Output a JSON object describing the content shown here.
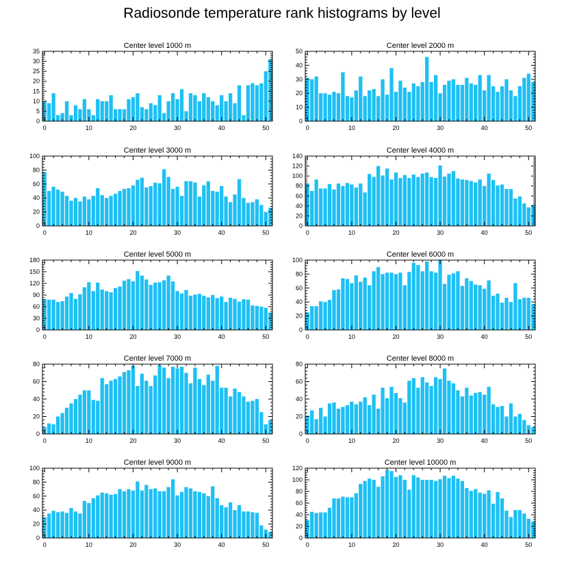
{
  "title": "Radiosonde temperature rank histograms by level",
  "colors": {
    "bar": "#1ec0f4",
    "axis": "#000000"
  },
  "chart_data": [
    {
      "type": "bar",
      "title": "Center level 1000 m",
      "x": [
        0,
        1,
        2,
        3,
        4,
        5,
        6,
        7,
        8,
        9,
        10,
        11,
        12,
        13,
        14,
        15,
        16,
        17,
        18,
        19,
        20,
        21,
        22,
        23,
        24,
        25,
        26,
        27,
        28,
        29,
        30,
        31,
        32,
        33,
        34,
        35,
        36,
        37,
        38,
        39,
        40,
        41,
        42,
        43,
        44,
        45,
        46,
        47,
        48,
        49,
        50,
        51
      ],
      "values": [
        10,
        9,
        14,
        3,
        4,
        10,
        3,
        8,
        6,
        11,
        6,
        3,
        11,
        10,
        10,
        13,
        6,
        6,
        6,
        11,
        12,
        14,
        7,
        6,
        9,
        8,
        13,
        4,
        10,
        14,
        11,
        16,
        5,
        14,
        13,
        10,
        14,
        12,
        10,
        8,
        13,
        10,
        14,
        9,
        18,
        3,
        18,
        19,
        18,
        19,
        25,
        31
      ],
      "xlim": [
        -0.5,
        51.5
      ],
      "ylim": [
        0,
        35
      ],
      "xticks": [
        0,
        10,
        20,
        30,
        40,
        50
      ],
      "yticks": [
        0,
        5,
        10,
        15,
        20,
        25,
        30,
        35
      ]
    },
    {
      "type": "bar",
      "title": "Center level 2000 m",
      "x": [
        0,
        1,
        2,
        3,
        4,
        5,
        6,
        7,
        8,
        9,
        10,
        11,
        12,
        13,
        14,
        15,
        16,
        17,
        18,
        19,
        20,
        21,
        22,
        23,
        24,
        25,
        26,
        27,
        28,
        29,
        30,
        31,
        32,
        33,
        34,
        35,
        36,
        37,
        38,
        39,
        40,
        41,
        42,
        43,
        44,
        45,
        46,
        47,
        48,
        49,
        50,
        51
      ],
      "values": [
        31,
        30,
        32,
        20,
        20,
        19,
        21,
        20,
        35,
        18,
        17,
        22,
        32,
        18,
        22,
        23,
        18,
        30,
        19,
        38,
        21,
        29,
        24,
        21,
        27,
        25,
        28,
        46,
        28,
        33,
        20,
        26,
        29,
        30,
        26,
        26,
        31,
        27,
        26,
        33,
        22,
        33,
        25,
        21,
        25,
        30,
        22,
        18,
        25,
        31,
        34,
        28
      ],
      "xlim": [
        -0.5,
        51.5
      ],
      "ylim": [
        0,
        50
      ],
      "xticks": [
        0,
        10,
        20,
        30,
        40,
        50
      ],
      "yticks": [
        0,
        10,
        20,
        30,
        40,
        50
      ]
    },
    {
      "type": "bar",
      "title": "Center level 3000 m",
      "x": [
        0,
        1,
        2,
        3,
        4,
        5,
        6,
        7,
        8,
        9,
        10,
        11,
        12,
        13,
        14,
        15,
        16,
        17,
        18,
        19,
        20,
        21,
        22,
        23,
        24,
        25,
        26,
        27,
        28,
        29,
        30,
        31,
        32,
        33,
        34,
        35,
        36,
        37,
        38,
        39,
        40,
        41,
        42,
        43,
        44,
        45,
        46,
        47,
        48,
        49,
        50,
        51
      ],
      "values": [
        77,
        50,
        56,
        52,
        49,
        43,
        36,
        40,
        35,
        42,
        38,
        43,
        54,
        44,
        40,
        43,
        46,
        50,
        53,
        54,
        58,
        66,
        69,
        55,
        57,
        62,
        61,
        81,
        70,
        53,
        56,
        43,
        64,
        64,
        62,
        42,
        58,
        64,
        50,
        49,
        57,
        42,
        34,
        45,
        67,
        40,
        33,
        34,
        38,
        30,
        20,
        26
      ],
      "xlim": [
        -0.5,
        51.5
      ],
      "ylim": [
        0,
        100
      ],
      "xticks": [
        0,
        10,
        20,
        30,
        40,
        50
      ],
      "yticks": [
        0,
        20,
        40,
        60,
        80,
        100
      ]
    },
    {
      "type": "bar",
      "title": "Center level 4000 m",
      "x": [
        0,
        1,
        2,
        3,
        4,
        5,
        6,
        7,
        8,
        9,
        10,
        11,
        12,
        13,
        14,
        15,
        16,
        17,
        18,
        19,
        20,
        21,
        22,
        23,
        24,
        25,
        26,
        27,
        28,
        29,
        30,
        31,
        32,
        33,
        34,
        35,
        36,
        37,
        38,
        39,
        40,
        41,
        42,
        43,
        44,
        45,
        46,
        47,
        48,
        49,
        50,
        51
      ],
      "values": [
        85,
        70,
        93,
        75,
        75,
        84,
        73,
        85,
        80,
        86,
        83,
        77,
        85,
        67,
        104,
        98,
        120,
        101,
        115,
        93,
        107,
        96,
        102,
        96,
        103,
        98,
        105,
        107,
        98,
        96,
        121,
        99,
        105,
        110,
        95,
        93,
        92,
        90,
        87,
        93,
        80,
        105,
        92,
        81,
        83,
        74,
        74,
        55,
        59,
        45,
        37,
        42
      ],
      "xlim": [
        -0.5,
        51.5
      ],
      "ylim": [
        0,
        140
      ],
      "xticks": [
        0,
        10,
        20,
        30,
        40,
        50
      ],
      "yticks": [
        0,
        20,
        40,
        60,
        80,
        100,
        120,
        140
      ]
    },
    {
      "type": "bar",
      "title": "Center level 5000 m",
      "x": [
        0,
        1,
        2,
        3,
        4,
        5,
        6,
        7,
        8,
        9,
        10,
        11,
        12,
        13,
        14,
        15,
        16,
        17,
        18,
        19,
        20,
        21,
        22,
        23,
        24,
        25,
        26,
        27,
        28,
        29,
        30,
        31,
        32,
        33,
        34,
        35,
        36,
        37,
        38,
        39,
        40,
        41,
        42,
        43,
        44,
        45,
        46,
        47,
        48,
        49,
        50,
        51
      ],
      "values": [
        80,
        78,
        78,
        72,
        74,
        86,
        95,
        80,
        92,
        110,
        123,
        100,
        122,
        104,
        100,
        97,
        108,
        112,
        127,
        131,
        125,
        152,
        140,
        130,
        116,
        122,
        123,
        128,
        140,
        125,
        100,
        94,
        103,
        88,
        91,
        93,
        88,
        84,
        90,
        82,
        86,
        72,
        83,
        80,
        73,
        79,
        78,
        63,
        62,
        60,
        57,
        45
      ],
      "xlim": [
        -0.5,
        51.5
      ],
      "ylim": [
        0,
        180
      ],
      "xticks": [
        0,
        10,
        20,
        30,
        40,
        50
      ],
      "yticks": [
        0,
        30,
        60,
        90,
        120,
        150,
        180
      ]
    },
    {
      "type": "bar",
      "title": "Center level 6000 m",
      "x": [
        0,
        1,
        2,
        3,
        4,
        5,
        6,
        7,
        8,
        9,
        10,
        11,
        12,
        13,
        14,
        15,
        16,
        17,
        18,
        19,
        20,
        21,
        22,
        23,
        24,
        25,
        26,
        27,
        28,
        29,
        30,
        31,
        32,
        33,
        34,
        35,
        36,
        37,
        38,
        39,
        40,
        41,
        42,
        43,
        44,
        45,
        46,
        47,
        48,
        49,
        50,
        51
      ],
      "values": [
        25,
        34,
        34,
        41,
        40,
        43,
        57,
        58,
        74,
        73,
        67,
        78,
        69,
        75,
        64,
        84,
        90,
        80,
        82,
        82,
        80,
        82,
        64,
        83,
        96,
        93,
        84,
        98,
        84,
        82,
        100,
        66,
        79,
        81,
        84,
        63,
        74,
        70,
        65,
        64,
        59,
        71,
        49,
        52,
        39,
        46,
        40,
        67,
        44,
        46,
        46,
        37
      ],
      "xlim": [
        -0.5,
        51.5
      ],
      "ylim": [
        0,
        100
      ],
      "xticks": [
        0,
        10,
        20,
        30,
        40,
        50
      ],
      "yticks": [
        0,
        20,
        40,
        60,
        80,
        100
      ]
    },
    {
      "type": "bar",
      "title": "Center level 7000 m",
      "x": [
        0,
        1,
        2,
        3,
        4,
        5,
        6,
        7,
        8,
        9,
        10,
        11,
        12,
        13,
        14,
        15,
        16,
        17,
        18,
        19,
        20,
        21,
        22,
        23,
        24,
        25,
        26,
        27,
        28,
        29,
        30,
        31,
        32,
        33,
        34,
        35,
        36,
        37,
        38,
        39,
        40,
        41,
        42,
        43,
        44,
        45,
        46,
        47,
        48,
        49,
        50,
        51
      ],
      "values": [
        8,
        12,
        11,
        20,
        24,
        30,
        35,
        40,
        45,
        50,
        50,
        39,
        38,
        64,
        57,
        61,
        63,
        66,
        71,
        73,
        78,
        55,
        69,
        61,
        55,
        67,
        79,
        76,
        64,
        77,
        75,
        77,
        70,
        58,
        76,
        63,
        56,
        68,
        61,
        78,
        53,
        53,
        43,
        52,
        48,
        43,
        37,
        38,
        40,
        25,
        11,
        16
      ],
      "xlim": [
        -0.5,
        51.5
      ],
      "ylim": [
        0,
        80
      ],
      "xticks": [
        0,
        10,
        20,
        30,
        40,
        50
      ],
      "yticks": [
        0,
        20,
        40,
        60,
        80
      ]
    },
    {
      "type": "bar",
      "title": "Center level 8000 m",
      "x": [
        0,
        1,
        2,
        3,
        4,
        5,
        6,
        7,
        8,
        9,
        10,
        11,
        12,
        13,
        14,
        15,
        16,
        17,
        18,
        19,
        20,
        21,
        22,
        23,
        24,
        25,
        26,
        27,
        28,
        29,
        30,
        31,
        32,
        33,
        34,
        35,
        36,
        37,
        38,
        39,
        40,
        41,
        42,
        43,
        44,
        45,
        46,
        47,
        48,
        49,
        50,
        51
      ],
      "values": [
        21,
        27,
        17,
        30,
        20,
        35,
        36,
        29,
        31,
        33,
        37,
        34,
        37,
        42,
        33,
        45,
        29,
        53,
        41,
        54,
        47,
        41,
        36,
        61,
        64,
        53,
        65,
        59,
        55,
        65,
        63,
        75,
        61,
        58,
        50,
        43,
        53,
        44,
        47,
        48,
        45,
        54,
        34,
        31,
        32,
        20,
        35,
        20,
        23,
        16,
        10,
        8
      ],
      "xlim": [
        -0.5,
        51.5
      ],
      "ylim": [
        0,
        80
      ],
      "xticks": [
        0,
        10,
        20,
        30,
        40,
        50
      ],
      "yticks": [
        0,
        20,
        40,
        60,
        80
      ]
    },
    {
      "type": "bar",
      "title": "Center level 9000 m",
      "x": [
        0,
        1,
        2,
        3,
        4,
        5,
        6,
        7,
        8,
        9,
        10,
        11,
        12,
        13,
        14,
        15,
        16,
        17,
        18,
        19,
        20,
        21,
        22,
        23,
        24,
        25,
        26,
        27,
        28,
        29,
        30,
        31,
        32,
        33,
        34,
        35,
        36,
        37,
        38,
        39,
        40,
        41,
        42,
        43,
        44,
        45,
        46,
        47,
        48,
        49,
        50,
        51
      ],
      "values": [
        30,
        35,
        39,
        37,
        38,
        36,
        43,
        38,
        35,
        53,
        50,
        57,
        61,
        65,
        64,
        62,
        63,
        70,
        67,
        70,
        68,
        81,
        68,
        76,
        70,
        71,
        67,
        67,
        73,
        84,
        61,
        66,
        73,
        71,
        67,
        66,
        64,
        60,
        74,
        57,
        47,
        44,
        51,
        40,
        47,
        38,
        38,
        37,
        36,
        18,
        12,
        9
      ],
      "xlim": [
        -0.5,
        51.5
      ],
      "ylim": [
        0,
        100
      ],
      "xticks": [
        0,
        10,
        20,
        30,
        40,
        50
      ],
      "yticks": [
        0,
        20,
        40,
        60,
        80,
        100
      ]
    },
    {
      "type": "bar",
      "title": "Center level 10000 m",
      "x": [
        0,
        1,
        2,
        3,
        4,
        5,
        6,
        7,
        8,
        9,
        10,
        11,
        12,
        13,
        14,
        15,
        16,
        17,
        18,
        19,
        20,
        21,
        22,
        23,
        24,
        25,
        26,
        27,
        28,
        29,
        30,
        31,
        32,
        33,
        34,
        35,
        36,
        37,
        38,
        39,
        40,
        41,
        42,
        43,
        44,
        45,
        46,
        47,
        48,
        49,
        50,
        51
      ],
      "values": [
        31,
        45,
        43,
        44,
        44,
        52,
        68,
        68,
        71,
        70,
        70,
        77,
        93,
        98,
        102,
        100,
        88,
        106,
        117,
        115,
        105,
        108,
        100,
        83,
        108,
        104,
        100,
        100,
        100,
        98,
        101,
        107,
        103,
        107,
        102,
        98,
        86,
        81,
        84,
        78,
        76,
        82,
        59,
        79,
        68,
        47,
        36,
        48,
        48,
        42,
        33,
        28
      ],
      "xlim": [
        -0.5,
        51.5
      ],
      "ylim": [
        0,
        120
      ],
      "xticks": [
        0,
        10,
        20,
        30,
        40,
        50
      ],
      "yticks": [
        0,
        20,
        40,
        60,
        80,
        100,
        120
      ]
    }
  ]
}
